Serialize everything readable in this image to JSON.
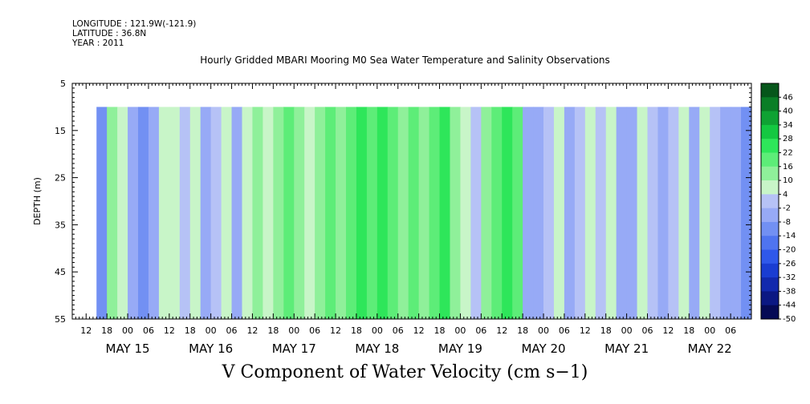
{
  "header": {
    "longitude": "LONGITUDE : 121.9W(-121.9)",
    "latitude": "LATITUDE : 36.8N",
    "year": "YEAR : 2011"
  },
  "chart_data": {
    "type": "heatmap",
    "title": "Hourly Gridded MBARI Mooring M0 Sea Water Temperature and Salinity Observations",
    "xlabel": "V Component of Water Velocity (cm s−1)",
    "ylabel": "DEPTH (m)",
    "y_axis": {
      "range": [
        5,
        55
      ],
      "inverted": true,
      "ticks": [
        5,
        15,
        25,
        35,
        45,
        55
      ],
      "data_depth_range": [
        10,
        55
      ]
    },
    "x_axis": {
      "range": [
        "2011-05-14T08:00",
        "2011-05-22T12:00"
      ],
      "data_time_range": [
        "2011-05-14T15:00",
        "2011-05-22T12:00"
      ],
      "hour_ticks": [
        {
          "label": "12",
          "day": 14,
          "hour": 12
        },
        {
          "label": "18",
          "day": 14,
          "hour": 18
        },
        {
          "label": "00",
          "day": 15,
          "hour": 0
        },
        {
          "label": "06",
          "day": 15,
          "hour": 6
        },
        {
          "label": "12",
          "day": 15,
          "hour": 12
        },
        {
          "label": "18",
          "day": 15,
          "hour": 18
        },
        {
          "label": "00",
          "day": 16,
          "hour": 0
        },
        {
          "label": "06",
          "day": 16,
          "hour": 6
        },
        {
          "label": "12",
          "day": 16,
          "hour": 12
        },
        {
          "label": "18",
          "day": 16,
          "hour": 18
        },
        {
          "label": "00",
          "day": 17,
          "hour": 0
        },
        {
          "label": "06",
          "day": 17,
          "hour": 6
        },
        {
          "label": "12",
          "day": 17,
          "hour": 12
        },
        {
          "label": "18",
          "day": 17,
          "hour": 18
        },
        {
          "label": "00",
          "day": 18,
          "hour": 0
        },
        {
          "label": "06",
          "day": 18,
          "hour": 6
        },
        {
          "label": "12",
          "day": 18,
          "hour": 12
        },
        {
          "label": "18",
          "day": 18,
          "hour": 18
        },
        {
          "label": "00",
          "day": 19,
          "hour": 0
        },
        {
          "label": "06",
          "day": 19,
          "hour": 6
        },
        {
          "label": "12",
          "day": 19,
          "hour": 12
        },
        {
          "label": "18",
          "day": 19,
          "hour": 18
        },
        {
          "label": "00",
          "day": 20,
          "hour": 0
        },
        {
          "label": "06",
          "day": 20,
          "hour": 6
        },
        {
          "label": "12",
          "day": 20,
          "hour": 12
        },
        {
          "label": "18",
          "day": 20,
          "hour": 18
        },
        {
          "label": "00",
          "day": 21,
          "hour": 0
        },
        {
          "label": "06",
          "day": 21,
          "hour": 6
        },
        {
          "label": "12",
          "day": 21,
          "hour": 12
        },
        {
          "label": "18",
          "day": 21,
          "hour": 18
        },
        {
          "label": "00",
          "day": 22,
          "hour": 0
        },
        {
          "label": "06",
          "day": 22,
          "hour": 6
        }
      ],
      "day_labels": [
        {
          "label": "MAY 15",
          "day": 15
        },
        {
          "label": "MAY 16",
          "day": 16
        },
        {
          "label": "MAY 17",
          "day": 17
        },
        {
          "label": "MAY 18",
          "day": 18
        },
        {
          "label": "MAY 19",
          "day": 19
        },
        {
          "label": "MAY 20",
          "day": 20
        },
        {
          "label": "MAY 21",
          "day": 21
        },
        {
          "label": "MAY 22",
          "day": 22
        }
      ]
    },
    "colorbar": {
      "levels": [
        -50,
        -44,
        -38,
        -32,
        -26,
        -20,
        -14,
        -8,
        -2,
        4,
        10,
        16,
        22,
        28,
        34,
        40,
        46
      ],
      "labels": [
        "46",
        "40",
        "34",
        "28",
        "22",
        "16",
        "10",
        "4",
        "-2",
        "-8",
        "-14",
        "-20",
        "-26",
        "-32",
        "-38",
        "-44",
        "-50"
      ],
      "colors": [
        "#050a55",
        "#0b1883",
        "#1229ad",
        "#1a3dd2",
        "#2f58ea",
        "#4f74ef",
        "#7290f3",
        "#97aaf6",
        "#b6c2f6",
        "#c8f5c8",
        "#8ff09a",
        "#5ded78",
        "#2ee65a",
        "#14c841",
        "#0fa233",
        "#0a7e26",
        "#06561a"
      ]
    },
    "columns": [
      {
        "t": "2011-05-14T15:00",
        "v": -10
      },
      {
        "t": "2011-05-14T18:00",
        "v": 10
      },
      {
        "t": "2011-05-14T21:00",
        "v": 4
      },
      {
        "t": "2011-05-15T00:00",
        "v": -8
      },
      {
        "t": "2011-05-15T03:00",
        "v": -10
      },
      {
        "t": "2011-05-15T06:00",
        "v": -8
      },
      {
        "t": "2011-05-15T09:00",
        "v": 4
      },
      {
        "t": "2011-05-15T12:00",
        "v": 4
      },
      {
        "t": "2011-05-15T15:00",
        "v": -2
      },
      {
        "t": "2011-05-15T18:00",
        "v": 4
      },
      {
        "t": "2011-05-15T21:00",
        "v": -8
      },
      {
        "t": "2011-05-16T00:00",
        "v": -2
      },
      {
        "t": "2011-05-16T03:00",
        "v": 4
      },
      {
        "t": "2011-05-16T06:00",
        "v": -8
      },
      {
        "t": "2011-05-16T09:00",
        "v": 4
      },
      {
        "t": "2011-05-16T12:00",
        "v": 10
      },
      {
        "t": "2011-05-16T15:00",
        "v": 4
      },
      {
        "t": "2011-05-16T18:00",
        "v": 10
      },
      {
        "t": "2011-05-16T21:00",
        "v": 16
      },
      {
        "t": "2011-05-17T00:00",
        "v": 10
      },
      {
        "t": "2011-05-17T03:00",
        "v": 4
      },
      {
        "t": "2011-05-17T06:00",
        "v": 10
      },
      {
        "t": "2011-05-17T09:00",
        "v": 16
      },
      {
        "t": "2011-05-17T12:00",
        "v": 10
      },
      {
        "t": "2011-05-17T15:00",
        "v": 16
      },
      {
        "t": "2011-05-17T18:00",
        "v": 22
      },
      {
        "t": "2011-05-17T21:00",
        "v": 16
      },
      {
        "t": "2011-05-18T00:00",
        "v": 22
      },
      {
        "t": "2011-05-18T03:00",
        "v": 16
      },
      {
        "t": "2011-05-18T06:00",
        "v": 10
      },
      {
        "t": "2011-05-18T09:00",
        "v": 16
      },
      {
        "t": "2011-05-18T12:00",
        "v": 10
      },
      {
        "t": "2011-05-18T15:00",
        "v": 16
      },
      {
        "t": "2011-05-18T18:00",
        "v": 22
      },
      {
        "t": "2011-05-18T21:00",
        "v": 10
      },
      {
        "t": "2011-05-19T00:00",
        "v": 4
      },
      {
        "t": "2011-05-19T03:00",
        "v": -2
      },
      {
        "t": "2011-05-19T06:00",
        "v": 10
      },
      {
        "t": "2011-05-19T09:00",
        "v": 16
      },
      {
        "t": "2011-05-19T12:00",
        "v": 22
      },
      {
        "t": "2011-05-19T15:00",
        "v": 16
      },
      {
        "t": "2011-05-19T18:00",
        "v": -8
      },
      {
        "t": "2011-05-19T21:00",
        "v": -8
      },
      {
        "t": "2011-05-20T00:00",
        "v": -2
      },
      {
        "t": "2011-05-20T03:00",
        "v": 4
      },
      {
        "t": "2011-05-20T06:00",
        "v": -8
      },
      {
        "t": "2011-05-20T09:00",
        "v": -2
      },
      {
        "t": "2011-05-20T12:00",
        "v": 4
      },
      {
        "t": "2011-05-20T15:00",
        "v": -2
      },
      {
        "t": "2011-05-20T18:00",
        "v": 4
      },
      {
        "t": "2011-05-20T21:00",
        "v": -8
      },
      {
        "t": "2011-05-21T00:00",
        "v": -8
      },
      {
        "t": "2011-05-21T03:00",
        "v": 4
      },
      {
        "t": "2011-05-21T06:00",
        "v": -2
      },
      {
        "t": "2011-05-21T09:00",
        "v": -8
      },
      {
        "t": "2011-05-21T12:00",
        "v": -2
      },
      {
        "t": "2011-05-21T15:00",
        "v": 4
      },
      {
        "t": "2011-05-21T18:00",
        "v": -8
      },
      {
        "t": "2011-05-21T21:00",
        "v": 4
      },
      {
        "t": "2011-05-22T00:00",
        "v": -2
      },
      {
        "t": "2011-05-22T03:00",
        "v": -8
      },
      {
        "t": "2011-05-22T06:00",
        "v": -8
      },
      {
        "t": "2011-05-22T09:00",
        "v": -14
      }
    ]
  }
}
